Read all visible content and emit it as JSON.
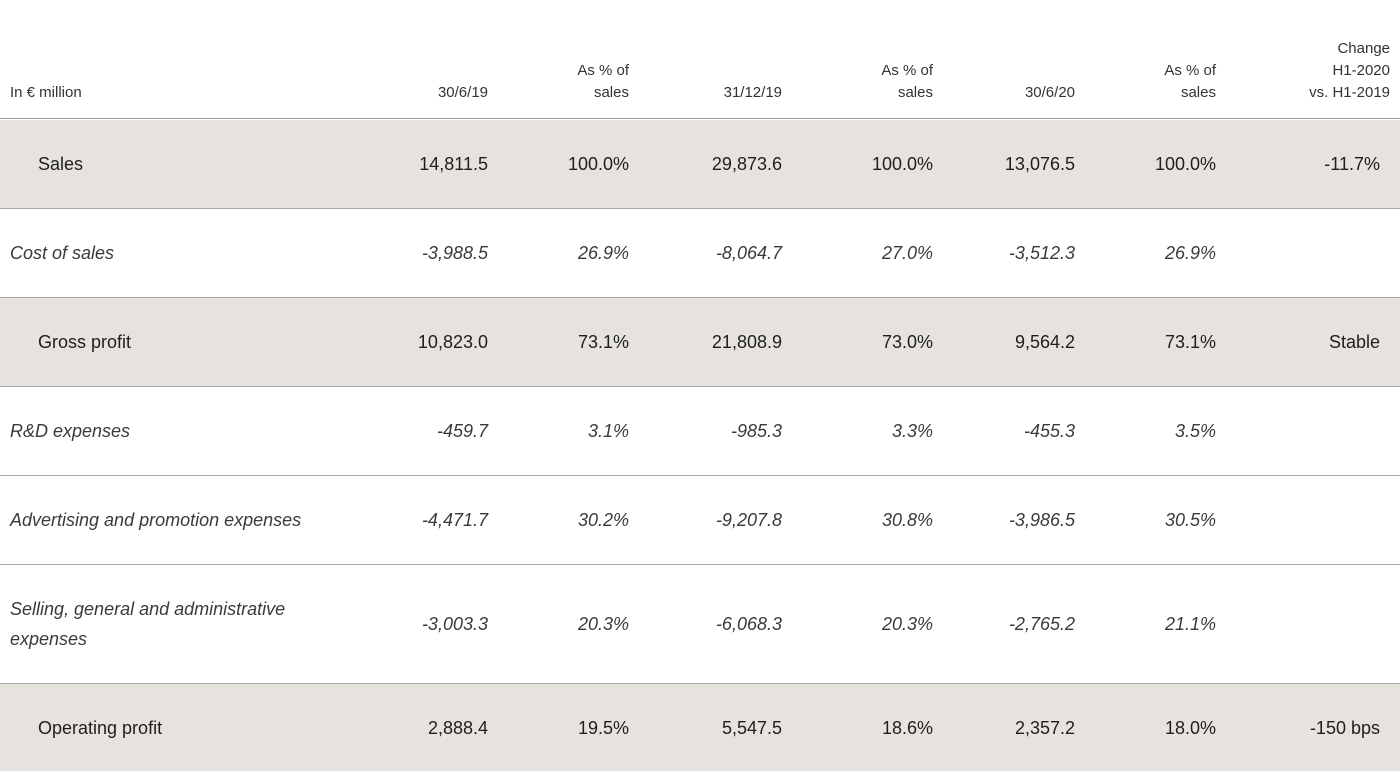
{
  "header": {
    "label": "In € million",
    "col1": "30/6/19",
    "col2_line1": "As % of",
    "col2_line2": "sales",
    "col3": "31/12/19",
    "col4_line1": "As % of",
    "col4_line2": "sales",
    "col5": "30/6/20",
    "col6_line1": "As % of",
    "col6_line2": "sales",
    "col7_line1": "Change",
    "col7_line2": "H1-2020",
    "col7_line3": "vs. H1-2019"
  },
  "rows": [
    {
      "label": "Sales",
      "v1": "14,811.5",
      "p1": "100.0%",
      "v2": "29,873.6",
      "p2": "100.0%",
      "v3": "13,076.5",
      "p3": "100.0%",
      "change": "-11.7%"
    },
    {
      "label": "Cost of sales",
      "v1": "-3,988.5",
      "p1": "26.9%",
      "v2": "-8,064.7",
      "p2": "27.0%",
      "v3": "-3,512.3",
      "p3": "26.9%",
      "change": ""
    },
    {
      "label": "Gross profit",
      "v1": "10,823.0",
      "p1": "73.1%",
      "v2": "21,808.9",
      "p2": "73.0%",
      "v3": "9,564.2",
      "p3": "73.1%",
      "change": "Stable"
    },
    {
      "label": "R&D expenses",
      "v1": "-459.7",
      "p1": "3.1%",
      "v2": "-985.3",
      "p2": "3.3%",
      "v3": "-455.3",
      "p3": "3.5%",
      "change": ""
    },
    {
      "label": "Advertising and promotion expenses",
      "v1": "-4,471.7",
      "p1": "30.2%",
      "v2": "-9,207.8",
      "p2": "30.8%",
      "v3": "-3,986.5",
      "p3": "30.5%",
      "change": ""
    },
    {
      "label": "Selling, general and administrative expenses",
      "v1": "-3,003.3",
      "p1": "20.3%",
      "v2": "-6,068.3",
      "p2": "20.3%",
      "v3": "-2,765.2",
      "p3": "21.1%",
      "change": ""
    },
    {
      "label": "Operating profit",
      "v1": "2,888.4",
      "p1": "19.5%",
      "v2": "5,547.5",
      "p2": "18.6%",
      "v3": "2,357.2",
      "p3": "18.0%",
      "change": "-150 bps"
    }
  ],
  "colors": {
    "shaded_row": "#e6e3df",
    "rule": "#a8a8a8",
    "text": "#2a2a2a"
  }
}
